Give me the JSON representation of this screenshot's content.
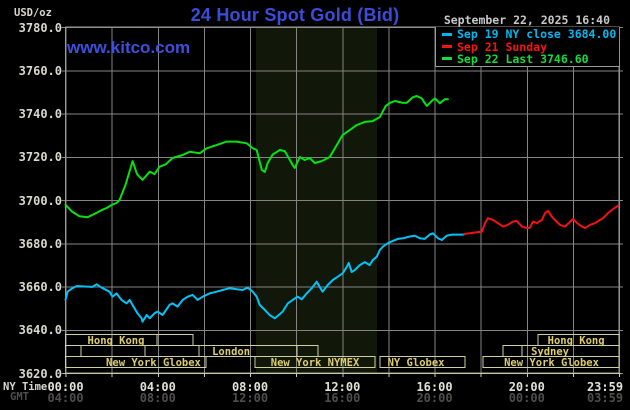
{
  "header": {
    "unit_label": "USD/oz",
    "title": "24 Hour Spot Gold (Bid)",
    "datetime": "September 22, 2025 16:40",
    "watermark": "www.kitco.com"
  },
  "legend": {
    "items": [
      {
        "label": "Sep 19 NY close 3684.00",
        "color": "#00b7f2"
      },
      {
        "label": "Sep 21 Sunday",
        "color": "#f31616"
      },
      {
        "label": "Sep 22 Last 3746.60",
        "color": "#16dc3c"
      }
    ]
  },
  "axes": {
    "ny_row_label": "NY Time",
    "gmt_row_label": "GMT",
    "y_labels": [
      "3780.0",
      "3760.0",
      "3740.0",
      "3720.0",
      "3700.0",
      "3680.0",
      "3660.0",
      "3640.0",
      "3620.0"
    ],
    "ny_ticks": [
      "00:00",
      "04:00",
      "08:00",
      "12:00",
      "16:00",
      "20:00",
      "23:59"
    ],
    "gmt_ticks": [
      "04:00",
      "08:00",
      "12:00",
      "16:00",
      "20:00",
      "00:00",
      "03:59"
    ]
  },
  "colors": {
    "grid": "#848484",
    "border": "#9a9a9a",
    "band": "#121809",
    "session_border": "#cfcf9c",
    "session_text": "#ddcc70",
    "baseline": "#c9c99c",
    "tick": "#cccccc",
    "title_blue": "#3a4cd8",
    "axis_text": "#d8d8cc",
    "gmt_text": "#4e4e4e"
  },
  "chart_data": {
    "type": "line",
    "title": "24 Hour Spot Gold (Bid)",
    "ylabel": "USD/oz",
    "ylim": [
      3620,
      3780
    ],
    "y_gridline_step": 20,
    "xlim_hours": [
      0,
      24
    ],
    "x_gridline_every_hours": 2,
    "x_tick_every_hours": 4,
    "nymex_band_hours": [
      8.26,
      13.51
    ],
    "series": [
      {
        "name": "Sep 19 NY close",
        "color": "#00c3f7",
        "close_value": 3684.0,
        "points": [
          [
            0,
            3653.8
          ],
          [
            0.09,
            3657.6
          ],
          [
            0.3,
            3659.2
          ],
          [
            0.48,
            3660.2
          ],
          [
            1.17,
            3659.8
          ],
          [
            1.35,
            3661.0
          ],
          [
            1.61,
            3659.2
          ],
          [
            1.91,
            3657.6
          ],
          [
            2.04,
            3655.3
          ],
          [
            2.21,
            3656.8
          ],
          [
            2.43,
            3653.8
          ],
          [
            2.65,
            3652.2
          ],
          [
            2.78,
            3653.8
          ],
          [
            2.99,
            3649.9
          ],
          [
            3.12,
            3647.6
          ],
          [
            3.3,
            3645.3
          ],
          [
            3.34,
            3643.7
          ],
          [
            3.52,
            3646.8
          ],
          [
            3.65,
            3645.3
          ],
          [
            3.86,
            3647.6
          ],
          [
            3.99,
            3648.4
          ],
          [
            4.21,
            3646.8
          ],
          [
            4.51,
            3651.5
          ],
          [
            4.64,
            3652.2
          ],
          [
            4.86,
            3650.7
          ],
          [
            5.08,
            3653.8
          ],
          [
            5.3,
            3655.3
          ],
          [
            5.51,
            3656.1
          ],
          [
            5.73,
            3653.8
          ],
          [
            5.95,
            3655.3
          ],
          [
            6.25,
            3656.8
          ],
          [
            6.55,
            3657.6
          ],
          [
            6.81,
            3658.4
          ],
          [
            7.12,
            3659.2
          ],
          [
            7.42,
            3658.7
          ],
          [
            7.68,
            3658.4
          ],
          [
            7.9,
            3659.5
          ],
          [
            8.12,
            3657.6
          ],
          [
            8.29,
            3655.3
          ],
          [
            8.42,
            3651.5
          ],
          [
            8.64,
            3649.2
          ],
          [
            8.85,
            3646.8
          ],
          [
            9.07,
            3645.3
          ],
          [
            9.2,
            3646.4
          ],
          [
            9.42,
            3648.4
          ],
          [
            9.64,
            3652.2
          ],
          [
            9.85,
            3653.8
          ],
          [
            10.07,
            3655.3
          ],
          [
            10.24,
            3654.1
          ],
          [
            10.46,
            3656.8
          ],
          [
            10.68,
            3659.2
          ],
          [
            10.89,
            3662.2
          ],
          [
            11.02,
            3659.9
          ],
          [
            11.15,
            3657.6
          ],
          [
            11.37,
            3660.7
          ],
          [
            11.59,
            3663.0
          ],
          [
            11.8,
            3664.5
          ],
          [
            12.02,
            3666.1
          ],
          [
            12.2,
            3669.2
          ],
          [
            12.28,
            3670.9
          ],
          [
            12.41,
            3666.7
          ],
          [
            12.54,
            3667.6
          ],
          [
            12.76,
            3669.9
          ],
          [
            12.98,
            3671.3
          ],
          [
            13.19,
            3669.9
          ],
          [
            13.32,
            3672.2
          ],
          [
            13.5,
            3673.8
          ],
          [
            13.63,
            3676.9
          ],
          [
            13.76,
            3678.4
          ],
          [
            13.97,
            3680.0
          ],
          [
            14.19,
            3681.1
          ],
          [
            14.41,
            3682.0
          ],
          [
            14.63,
            3682.3
          ],
          [
            14.93,
            3683.1
          ],
          [
            15.15,
            3683.5
          ],
          [
            15.36,
            3682.3
          ],
          [
            15.58,
            3682.0
          ],
          [
            15.8,
            3684.1
          ],
          [
            15.93,
            3684.6
          ],
          [
            16.15,
            3682.3
          ],
          [
            16.32,
            3681.5
          ],
          [
            16.53,
            3683.5
          ],
          [
            16.75,
            3684.0
          ],
          [
            17.01,
            3684.0
          ],
          [
            17.27,
            3684.0
          ]
        ]
      },
      {
        "name": "Sep 21 Sunday",
        "color": "#f21212",
        "points": [
          [
            17.27,
            3684.3
          ],
          [
            17.53,
            3684.6
          ],
          [
            17.79,
            3685.0
          ],
          [
            18.06,
            3685.4
          ],
          [
            18.19,
            3689.3
          ],
          [
            18.32,
            3691.6
          ],
          [
            18.53,
            3690.8
          ],
          [
            18.75,
            3689.3
          ],
          [
            18.97,
            3687.7
          ],
          [
            19.18,
            3688.5
          ],
          [
            19.4,
            3690.0
          ],
          [
            19.57,
            3690.3
          ],
          [
            19.79,
            3687.7
          ],
          [
            20.01,
            3687.0
          ],
          [
            20.14,
            3687.2
          ],
          [
            20.27,
            3690.0
          ],
          [
            20.44,
            3689.3
          ],
          [
            20.66,
            3690.8
          ],
          [
            20.79,
            3693.9
          ],
          [
            20.92,
            3695.0
          ],
          [
            21.09,
            3692.3
          ],
          [
            21.22,
            3690.8
          ],
          [
            21.44,
            3688.5
          ],
          [
            21.66,
            3687.7
          ],
          [
            21.88,
            3690.0
          ],
          [
            22.01,
            3691.2
          ],
          [
            22.18,
            3689.3
          ],
          [
            22.4,
            3687.7
          ],
          [
            22.53,
            3687.0
          ],
          [
            22.74,
            3688.5
          ],
          [
            22.96,
            3689.3
          ],
          [
            23.18,
            3690.8
          ],
          [
            23.31,
            3691.6
          ],
          [
            23.52,
            3693.9
          ],
          [
            23.7,
            3695.4
          ],
          [
            23.83,
            3696.5
          ],
          [
            23.96,
            3697.3
          ]
        ]
      },
      {
        "name": "Sep 22",
        "color": "#00e410",
        "last_value": 3746.6,
        "points": [
          [
            0,
            3697.8
          ],
          [
            0.3,
            3694.5
          ],
          [
            0.6,
            3692.5
          ],
          [
            0.95,
            3692.0
          ],
          [
            1.3,
            3693.8
          ],
          [
            1.6,
            3695.5
          ],
          [
            1.78,
            3696.3
          ],
          [
            2.0,
            3697.7
          ],
          [
            2.21,
            3698.6
          ],
          [
            2.34,
            3700.0
          ],
          [
            2.6,
            3707.0
          ],
          [
            2.91,
            3718.0
          ],
          [
            3.1,
            3712.0
          ],
          [
            3.34,
            3709.3
          ],
          [
            3.65,
            3713.1
          ],
          [
            3.86,
            3712.0
          ],
          [
            4.08,
            3715.4
          ],
          [
            4.35,
            3716.5
          ],
          [
            4.64,
            3719.4
          ],
          [
            5.08,
            3720.8
          ],
          [
            5.38,
            3722.3
          ],
          [
            5.82,
            3721.6
          ],
          [
            6.12,
            3723.9
          ],
          [
            6.55,
            3725.4
          ],
          [
            6.99,
            3727.0
          ],
          [
            7.42,
            3727.0
          ],
          [
            7.86,
            3726.2
          ],
          [
            8.11,
            3724.0
          ],
          [
            8.29,
            3723.1
          ],
          [
            8.51,
            3713.9
          ],
          [
            8.64,
            3713.0
          ],
          [
            8.77,
            3717.2
          ],
          [
            8.98,
            3721.0
          ],
          [
            9.29,
            3723.1
          ],
          [
            9.51,
            3722.6
          ],
          [
            9.85,
            3716.2
          ],
          [
            9.94,
            3714.8
          ],
          [
            10.16,
            3719.9
          ],
          [
            10.37,
            3718.5
          ],
          [
            10.59,
            3719.4
          ],
          [
            10.81,
            3717.1
          ],
          [
            11.11,
            3718.0
          ],
          [
            11.46,
            3719.9
          ],
          [
            11.76,
            3725.4
          ],
          [
            12.02,
            3730.1
          ],
          [
            12.33,
            3732.4
          ],
          [
            12.63,
            3734.7
          ],
          [
            12.98,
            3736.1
          ],
          [
            13.32,
            3736.5
          ],
          [
            13.63,
            3738.4
          ],
          [
            13.89,
            3743.5
          ],
          [
            14.06,
            3744.9
          ],
          [
            14.28,
            3745.8
          ],
          [
            14.63,
            3744.9
          ],
          [
            14.8,
            3745.0
          ],
          [
            15.06,
            3747.5
          ],
          [
            15.23,
            3748.1
          ],
          [
            15.45,
            3747.0
          ],
          [
            15.58,
            3744.7
          ],
          [
            15.67,
            3743.5
          ],
          [
            15.89,
            3745.9
          ],
          [
            16.02,
            3747.0
          ],
          [
            16.23,
            3744.7
          ],
          [
            16.45,
            3746.6
          ],
          [
            16.58,
            3746.6
          ]
        ]
      }
    ],
    "sessions": {
      "boxes": [
        {
          "row": 0,
          "t1": 0,
          "t2": 3.97
        },
        {
          "row": 0,
          "t1": 3.97,
          "t2": 5.53
        },
        {
          "row": 0,
          "t1": 20.49,
          "t2": 24
        },
        {
          "row": 1,
          "t1": 0,
          "t2": 0.67
        },
        {
          "row": 1,
          "t1": 0.67,
          "t2": 3.45
        },
        {
          "row": 1,
          "t1": 3.45,
          "t2": 5.79
        },
        {
          "row": 1,
          "t1": 5.79,
          "t2": 10.04
        },
        {
          "row": 1,
          "t1": 10.04,
          "t2": 10.95
        },
        {
          "row": 1,
          "t1": 18.97,
          "t2": 19.8
        },
        {
          "row": 1,
          "t1": 19.8,
          "t2": 24
        },
        {
          "row": 2,
          "t1": 0,
          "t2": 6.09
        },
        {
          "row": 2,
          "t1": 8.22,
          "t2": 13.42
        },
        {
          "row": 2,
          "t1": 13.64,
          "t2": 17.33
        },
        {
          "row": 2,
          "t1": 18.11,
          "t2": 24
        }
      ],
      "labels": [
        {
          "row": 0,
          "t": 2.19,
          "text": "Hong Kong"
        },
        {
          "row": 0,
          "t": 22.14,
          "text": "Hong Kong"
        },
        {
          "row": 1,
          "t": 7.18,
          "text": "London"
        },
        {
          "row": 1,
          "t": 21.01,
          "text": "Sydney"
        },
        {
          "row": 2,
          "t": 3.71,
          "text": "New York Globex"
        },
        {
          "row": 2,
          "t": 10.82,
          "text": "New York NYMEX"
        },
        {
          "row": 2,
          "t": 15.2,
          "text": "NY Globex"
        },
        {
          "row": 2,
          "t": 20.97,
          "text": "New York Globex"
        }
      ]
    }
  }
}
